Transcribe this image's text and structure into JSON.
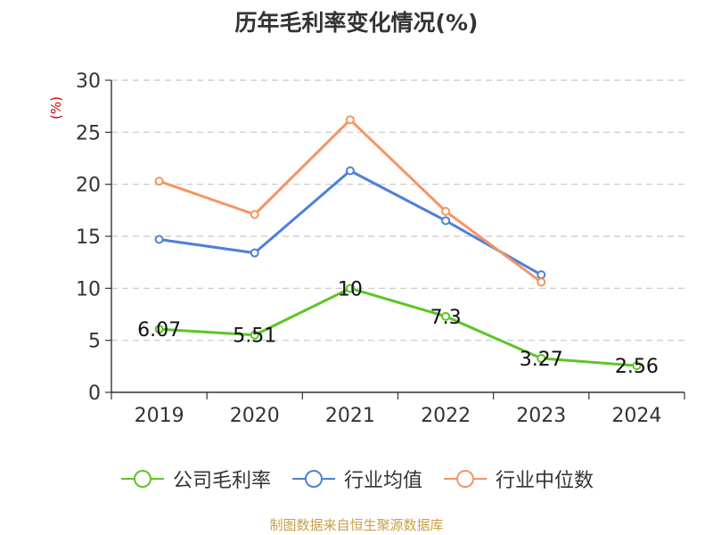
{
  "chart_data": {
    "type": "line",
    "title": "历年毛利率变化情况(%)",
    "ylabel": "(%)",
    "categories": [
      "2019",
      "2020",
      "2021",
      "2022",
      "2023",
      "2024"
    ],
    "ylim": [
      0,
      30
    ],
    "yticks": [
      0,
      5,
      10,
      15,
      20,
      25,
      30
    ],
    "grid": true,
    "legend_position": "bottom",
    "series": [
      {
        "name": "公司毛利率",
        "color": "#5cc526",
        "values": [
          6.07,
          5.51,
          10,
          7.3,
          3.27,
          2.56
        ],
        "labels": [
          "6.07",
          "5.51",
          "10",
          "7.3",
          "3.27",
          "2.56"
        ]
      },
      {
        "name": "行业均值",
        "color": "#4e80d9",
        "values": [
          14.7,
          13.4,
          21.3,
          16.5,
          11.3,
          null
        ]
      },
      {
        "name": "行业中位数",
        "color": "#f59563",
        "values": [
          20.3,
          17.1,
          26.2,
          17.4,
          10.6,
          null
        ]
      }
    ]
  },
  "footer": "制图数据来自恒生聚源数据库"
}
